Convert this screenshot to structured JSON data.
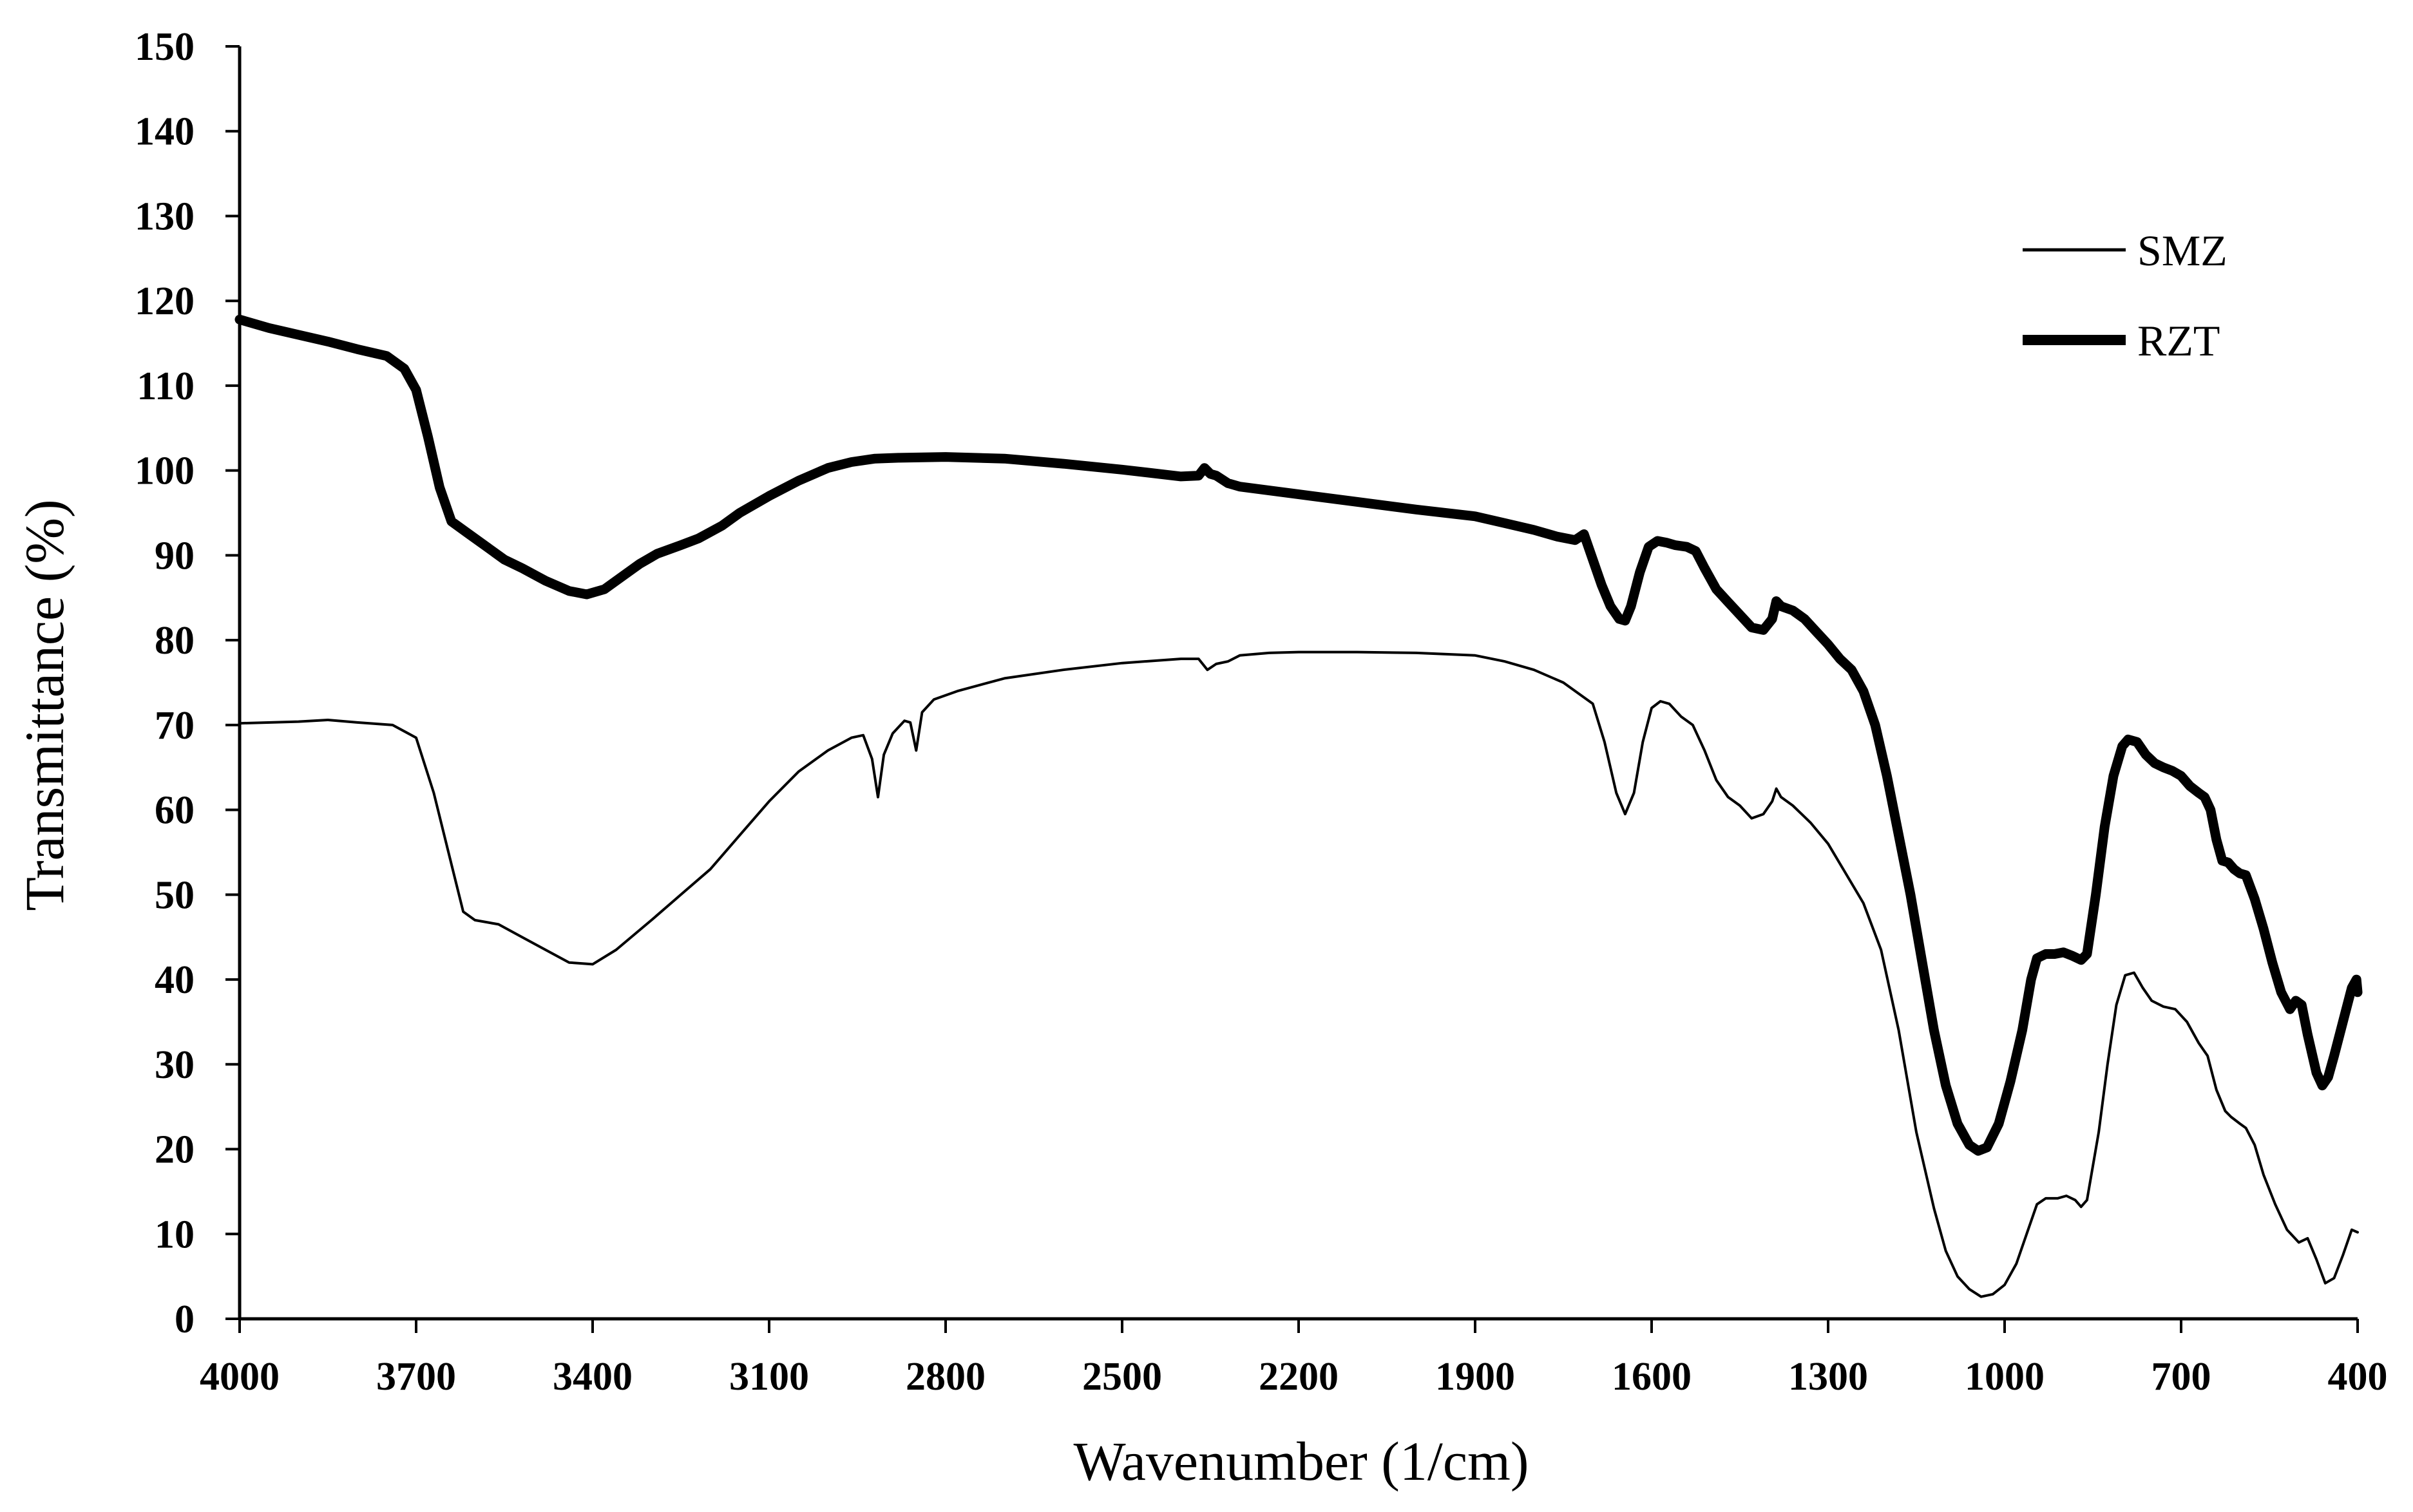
{
  "chart_data": {
    "type": "line",
    "title": "",
    "xlabel": "Wavenumber (1/cm)",
    "ylabel": "Transmittance (%)",
    "xlim": [
      4000,
      400
    ],
    "ylim": [
      0,
      150
    ],
    "x_ticks": [
      4000,
      3700,
      3400,
      3100,
      2800,
      2500,
      2200,
      1900,
      1600,
      1300,
      1000,
      700,
      400
    ],
    "y_ticks": [
      0,
      10,
      20,
      30,
      40,
      50,
      60,
      70,
      80,
      90,
      100,
      110,
      120,
      130,
      140,
      150
    ],
    "x_reversed": true,
    "grid": false,
    "legend_position": "top-right",
    "series": [
      {
        "name": "SMZ",
        "line": "thin",
        "color": "#000000",
        "points": [
          [
            4000,
            70.2
          ],
          [
            3900,
            70.4
          ],
          [
            3850,
            70.6
          ],
          [
            3800,
            70.3
          ],
          [
            3740,
            70.0
          ],
          [
            3700,
            68.5
          ],
          [
            3670,
            62.0
          ],
          [
            3645,
            55.0
          ],
          [
            3620,
            48.0
          ],
          [
            3600,
            47.0
          ],
          [
            3560,
            46.5
          ],
          [
            3520,
            45.0
          ],
          [
            3480,
            43.5
          ],
          [
            3440,
            42.0
          ],
          [
            3400,
            41.8
          ],
          [
            3360,
            43.5
          ],
          [
            3300,
            47.0
          ],
          [
            3250,
            50.0
          ],
          [
            3200,
            53.0
          ],
          [
            3150,
            57.0
          ],
          [
            3100,
            61.0
          ],
          [
            3050,
            64.5
          ],
          [
            3000,
            67.0
          ],
          [
            2960,
            68.5
          ],
          [
            2940,
            68.8
          ],
          [
            2925,
            66.0
          ],
          [
            2915,
            61.5
          ],
          [
            2905,
            66.5
          ],
          [
            2890,
            69.0
          ],
          [
            2870,
            70.5
          ],
          [
            2860,
            70.3
          ],
          [
            2850,
            67.0
          ],
          [
            2840,
            71.5
          ],
          [
            2820,
            73.0
          ],
          [
            2780,
            74.0
          ],
          [
            2700,
            75.5
          ],
          [
            2600,
            76.5
          ],
          [
            2500,
            77.3
          ],
          [
            2400,
            77.8
          ],
          [
            2370,
            77.8
          ],
          [
            2355,
            76.5
          ],
          [
            2340,
            77.2
          ],
          [
            2320,
            77.5
          ],
          [
            2300,
            78.2
          ],
          [
            2250,
            78.5
          ],
          [
            2200,
            78.6
          ],
          [
            2100,
            78.6
          ],
          [
            2000,
            78.5
          ],
          [
            1900,
            78.2
          ],
          [
            1850,
            77.5
          ],
          [
            1800,
            76.5
          ],
          [
            1750,
            75.0
          ],
          [
            1700,
            72.5
          ],
          [
            1680,
            68.0
          ],
          [
            1660,
            62.0
          ],
          [
            1645,
            59.5
          ],
          [
            1630,
            62.0
          ],
          [
            1615,
            68.0
          ],
          [
            1600,
            72.0
          ],
          [
            1585,
            72.8
          ],
          [
            1570,
            72.5
          ],
          [
            1550,
            71.0
          ],
          [
            1530,
            70.0
          ],
          [
            1510,
            67.0
          ],
          [
            1490,
            63.5
          ],
          [
            1470,
            61.5
          ],
          [
            1450,
            60.5
          ],
          [
            1430,
            59.0
          ],
          [
            1410,
            59.5
          ],
          [
            1395,
            61.0
          ],
          [
            1388,
            62.5
          ],
          [
            1380,
            61.5
          ],
          [
            1360,
            60.5
          ],
          [
            1330,
            58.5
          ],
          [
            1300,
            56.0
          ],
          [
            1270,
            52.5
          ],
          [
            1240,
            49.0
          ],
          [
            1210,
            43.5
          ],
          [
            1180,
            34.0
          ],
          [
            1150,
            22.0
          ],
          [
            1120,
            13.0
          ],
          [
            1100,
            8.0
          ],
          [
            1080,
            5.0
          ],
          [
            1060,
            3.5
          ],
          [
            1040,
            2.6
          ],
          [
            1020,
            2.9
          ],
          [
            1000,
            4.0
          ],
          [
            980,
            6.5
          ],
          [
            960,
            10.5
          ],
          [
            945,
            13.5
          ],
          [
            930,
            14.2
          ],
          [
            910,
            14.2
          ],
          [
            895,
            14.5
          ],
          [
            880,
            14.0
          ],
          [
            870,
            13.2
          ],
          [
            860,
            14.0
          ],
          [
            840,
            22.0
          ],
          [
            825,
            30.0
          ],
          [
            810,
            37.0
          ],
          [
            795,
            40.5
          ],
          [
            780,
            40.8
          ],
          [
            765,
            39.0
          ],
          [
            750,
            37.5
          ],
          [
            730,
            36.8
          ],
          [
            710,
            36.5
          ],
          [
            690,
            35.0
          ],
          [
            670,
            32.5
          ],
          [
            655,
            31.0
          ],
          [
            640,
            27.0
          ],
          [
            625,
            24.5
          ],
          [
            615,
            23.8
          ],
          [
            600,
            23.0
          ],
          [
            590,
            22.5
          ],
          [
            575,
            20.5
          ],
          [
            560,
            17.0
          ],
          [
            540,
            13.5
          ],
          [
            520,
            10.5
          ],
          [
            500,
            9.0
          ],
          [
            485,
            9.5
          ],
          [
            470,
            7.0
          ],
          [
            455,
            4.2
          ],
          [
            440,
            4.8
          ],
          [
            425,
            7.5
          ],
          [
            410,
            10.5
          ],
          [
            400,
            10.2
          ]
        ]
      },
      {
        "name": "RZT",
        "line": "thick",
        "color": "#000000",
        "points": [
          [
            4000,
            117.8
          ],
          [
            3950,
            116.8
          ],
          [
            3900,
            116.0
          ],
          [
            3850,
            115.2
          ],
          [
            3800,
            114.3
          ],
          [
            3750,
            113.5
          ],
          [
            3720,
            112.0
          ],
          [
            3700,
            109.5
          ],
          [
            3680,
            104.0
          ],
          [
            3660,
            98.0
          ],
          [
            3640,
            94.0
          ],
          [
            3610,
            92.5
          ],
          [
            3580,
            91.0
          ],
          [
            3550,
            89.5
          ],
          [
            3520,
            88.5
          ],
          [
            3480,
            87.0
          ],
          [
            3440,
            85.8
          ],
          [
            3410,
            85.4
          ],
          [
            3380,
            86.0
          ],
          [
            3350,
            87.5
          ],
          [
            3320,
            89.0
          ],
          [
            3290,
            90.2
          ],
          [
            3250,
            91.2
          ],
          [
            3220,
            92.0
          ],
          [
            3180,
            93.5
          ],
          [
            3150,
            95.0
          ],
          [
            3100,
            97.0
          ],
          [
            3050,
            98.8
          ],
          [
            3000,
            100.3
          ],
          [
            2960,
            101.0
          ],
          [
            2920,
            101.4
          ],
          [
            2880,
            101.5
          ],
          [
            2800,
            101.6
          ],
          [
            2700,
            101.4
          ],
          [
            2600,
            100.8
          ],
          [
            2500,
            100.1
          ],
          [
            2400,
            99.3
          ],
          [
            2370,
            99.4
          ],
          [
            2360,
            100.3
          ],
          [
            2350,
            99.6
          ],
          [
            2340,
            99.4
          ],
          [
            2320,
            98.5
          ],
          [
            2300,
            98.1
          ],
          [
            2200,
            97.2
          ],
          [
            2100,
            96.3
          ],
          [
            2000,
            95.4
          ],
          [
            1900,
            94.6
          ],
          [
            1850,
            93.8
          ],
          [
            1800,
            93.0
          ],
          [
            1760,
            92.2
          ],
          [
            1730,
            91.8
          ],
          [
            1715,
            92.5
          ],
          [
            1700,
            89.5
          ],
          [
            1685,
            86.5
          ],
          [
            1670,
            84.0
          ],
          [
            1655,
            82.5
          ],
          [
            1645,
            82.3
          ],
          [
            1635,
            84.0
          ],
          [
            1620,
            88.0
          ],
          [
            1605,
            91.0
          ],
          [
            1590,
            91.7
          ],
          [
            1575,
            91.5
          ],
          [
            1560,
            91.2
          ],
          [
            1540,
            91.0
          ],
          [
            1525,
            90.5
          ],
          [
            1510,
            88.5
          ],
          [
            1490,
            86.0
          ],
          [
            1470,
            84.5
          ],
          [
            1450,
            83.0
          ],
          [
            1430,
            81.5
          ],
          [
            1410,
            81.2
          ],
          [
            1395,
            82.5
          ],
          [
            1388,
            84.6
          ],
          [
            1380,
            84.0
          ],
          [
            1360,
            83.5
          ],
          [
            1340,
            82.5
          ],
          [
            1320,
            81.0
          ],
          [
            1300,
            79.5
          ],
          [
            1280,
            77.8
          ],
          [
            1260,
            76.5
          ],
          [
            1240,
            74.0
          ],
          [
            1220,
            70.0
          ],
          [
            1200,
            64.0
          ],
          [
            1180,
            57.0
          ],
          [
            1160,
            50.0
          ],
          [
            1140,
            42.0
          ],
          [
            1120,
            34.0
          ],
          [
            1100,
            27.5
          ],
          [
            1080,
            23.0
          ],
          [
            1060,
            20.5
          ],
          [
            1045,
            19.8
          ],
          [
            1030,
            20.2
          ],
          [
            1010,
            23.0
          ],
          [
            990,
            28.0
          ],
          [
            970,
            34.0
          ],
          [
            955,
            40.0
          ],
          [
            945,
            42.5
          ],
          [
            930,
            43.0
          ],
          [
            915,
            43.0
          ],
          [
            900,
            43.2
          ],
          [
            885,
            42.8
          ],
          [
            870,
            42.3
          ],
          [
            860,
            43.0
          ],
          [
            845,
            50.0
          ],
          [
            830,
            58.0
          ],
          [
            815,
            64.0
          ],
          [
            800,
            67.5
          ],
          [
            790,
            68.3
          ],
          [
            775,
            68.0
          ],
          [
            760,
            66.5
          ],
          [
            745,
            65.5
          ],
          [
            730,
            65.0
          ],
          [
            715,
            64.6
          ],
          [
            700,
            64.0
          ],
          [
            685,
            62.8
          ],
          [
            670,
            62.0
          ],
          [
            660,
            61.5
          ],
          [
            650,
            60.0
          ],
          [
            640,
            56.5
          ],
          [
            630,
            54.0
          ],
          [
            620,
            53.8
          ],
          [
            610,
            53.0
          ],
          [
            600,
            52.5
          ],
          [
            590,
            52.3
          ],
          [
            575,
            49.5
          ],
          [
            560,
            46.0
          ],
          [
            545,
            42.0
          ],
          [
            530,
            38.5
          ],
          [
            515,
            36.5
          ],
          [
            505,
            37.5
          ],
          [
            495,
            37.0
          ],
          [
            485,
            33.5
          ],
          [
            470,
            29.0
          ],
          [
            460,
            27.5
          ],
          [
            450,
            28.5
          ],
          [
            440,
            31.0
          ],
          [
            425,
            35.0
          ],
          [
            410,
            39.0
          ],
          [
            402,
            40.0
          ],
          [
            400,
            38.5
          ]
        ]
      }
    ]
  }
}
